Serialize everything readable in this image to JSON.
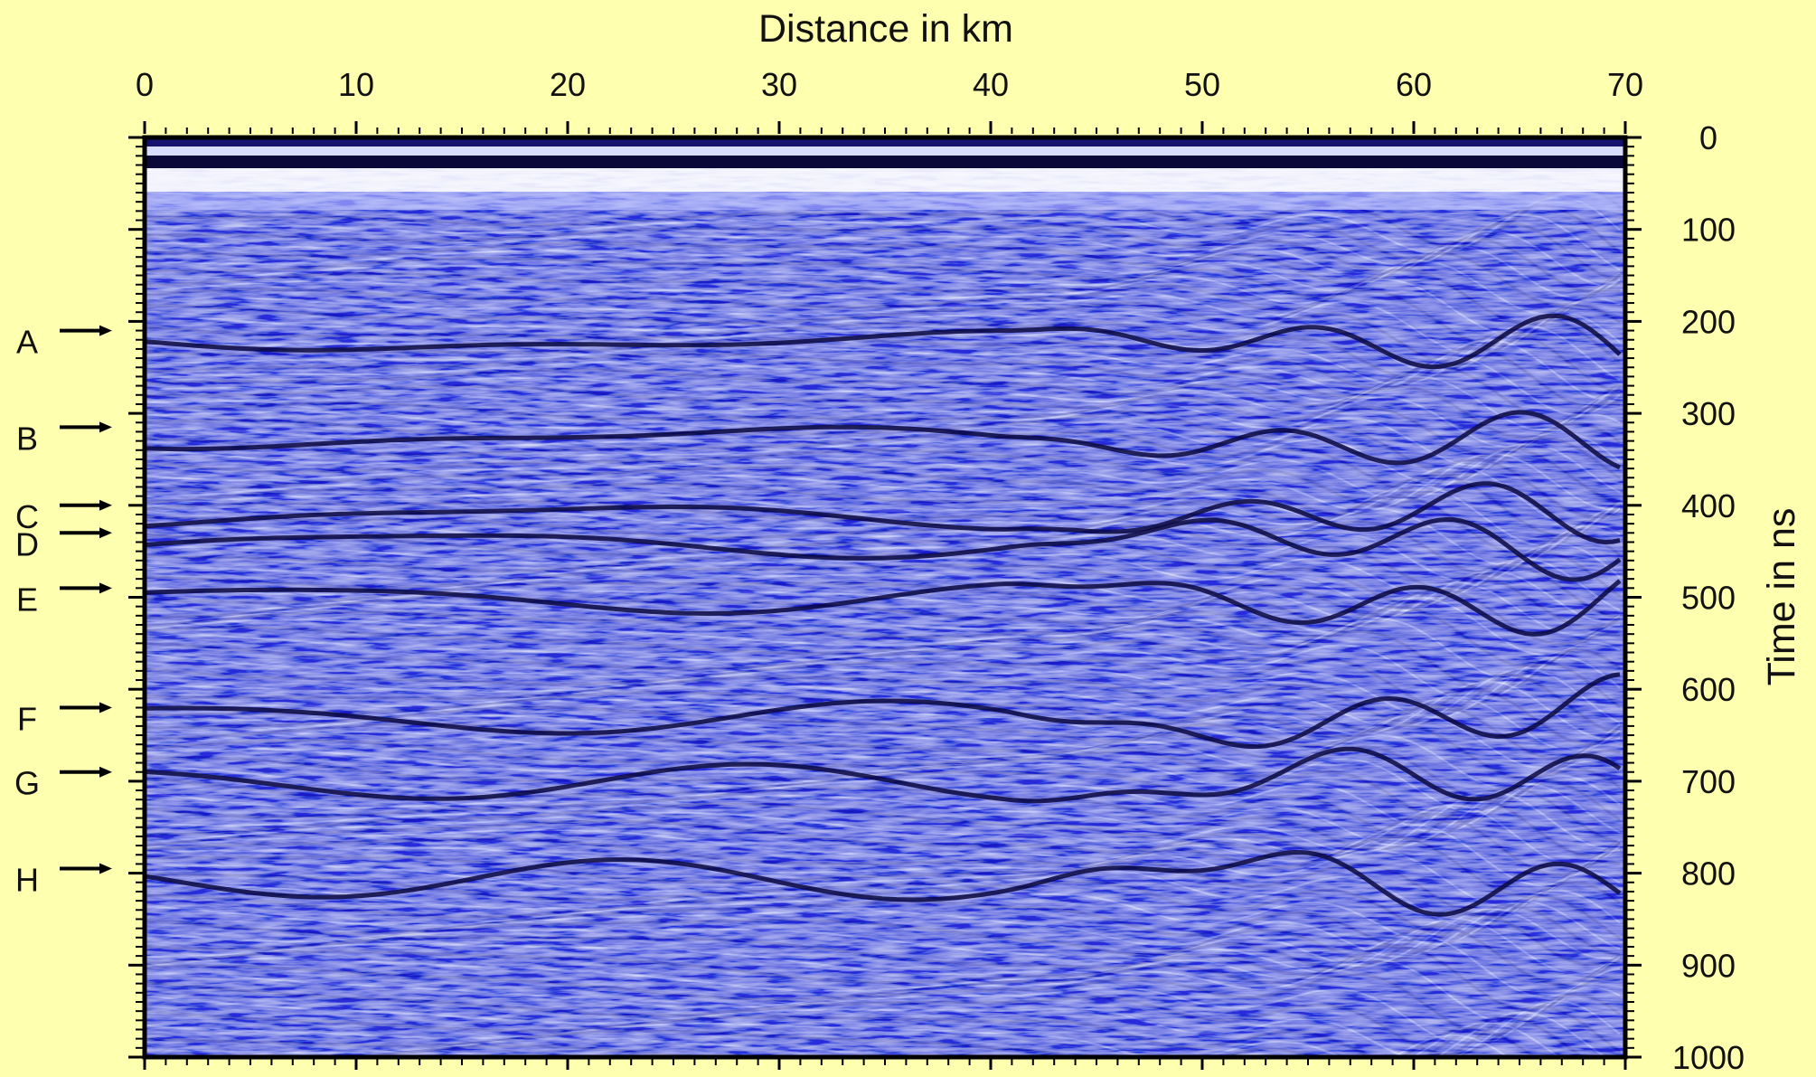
{
  "chart_data": {
    "type": "heatmap",
    "title": "",
    "xlabel": "Distance in km",
    "ylabel": "Time in ns",
    "x_ticks": [
      0,
      10,
      20,
      30,
      40,
      50,
      60,
      70
    ],
    "y_ticks": [
      0,
      100,
      200,
      300,
      400,
      500,
      600,
      700,
      800,
      900,
      1000
    ],
    "xlim": [
      0,
      70
    ],
    "ylim": [
      0,
      1000
    ],
    "y_inverted": true,
    "colors": {
      "background": "#ffffb0",
      "trace_low": "#16128a",
      "trace_mid": "#6a6ee0",
      "trace_high": "#ffffff",
      "axis": "#000000"
    },
    "horizons": [
      {
        "label": "A",
        "time_ns": 210
      },
      {
        "label": "B",
        "time_ns": 315
      },
      {
        "label": "C",
        "time_ns": 400
      },
      {
        "label": "D",
        "time_ns": 430
      },
      {
        "label": "E",
        "time_ns": 490
      },
      {
        "label": "F",
        "time_ns": 620
      },
      {
        "label": "G",
        "time_ns": 690
      },
      {
        "label": "H",
        "time_ns": 795
      }
    ]
  }
}
